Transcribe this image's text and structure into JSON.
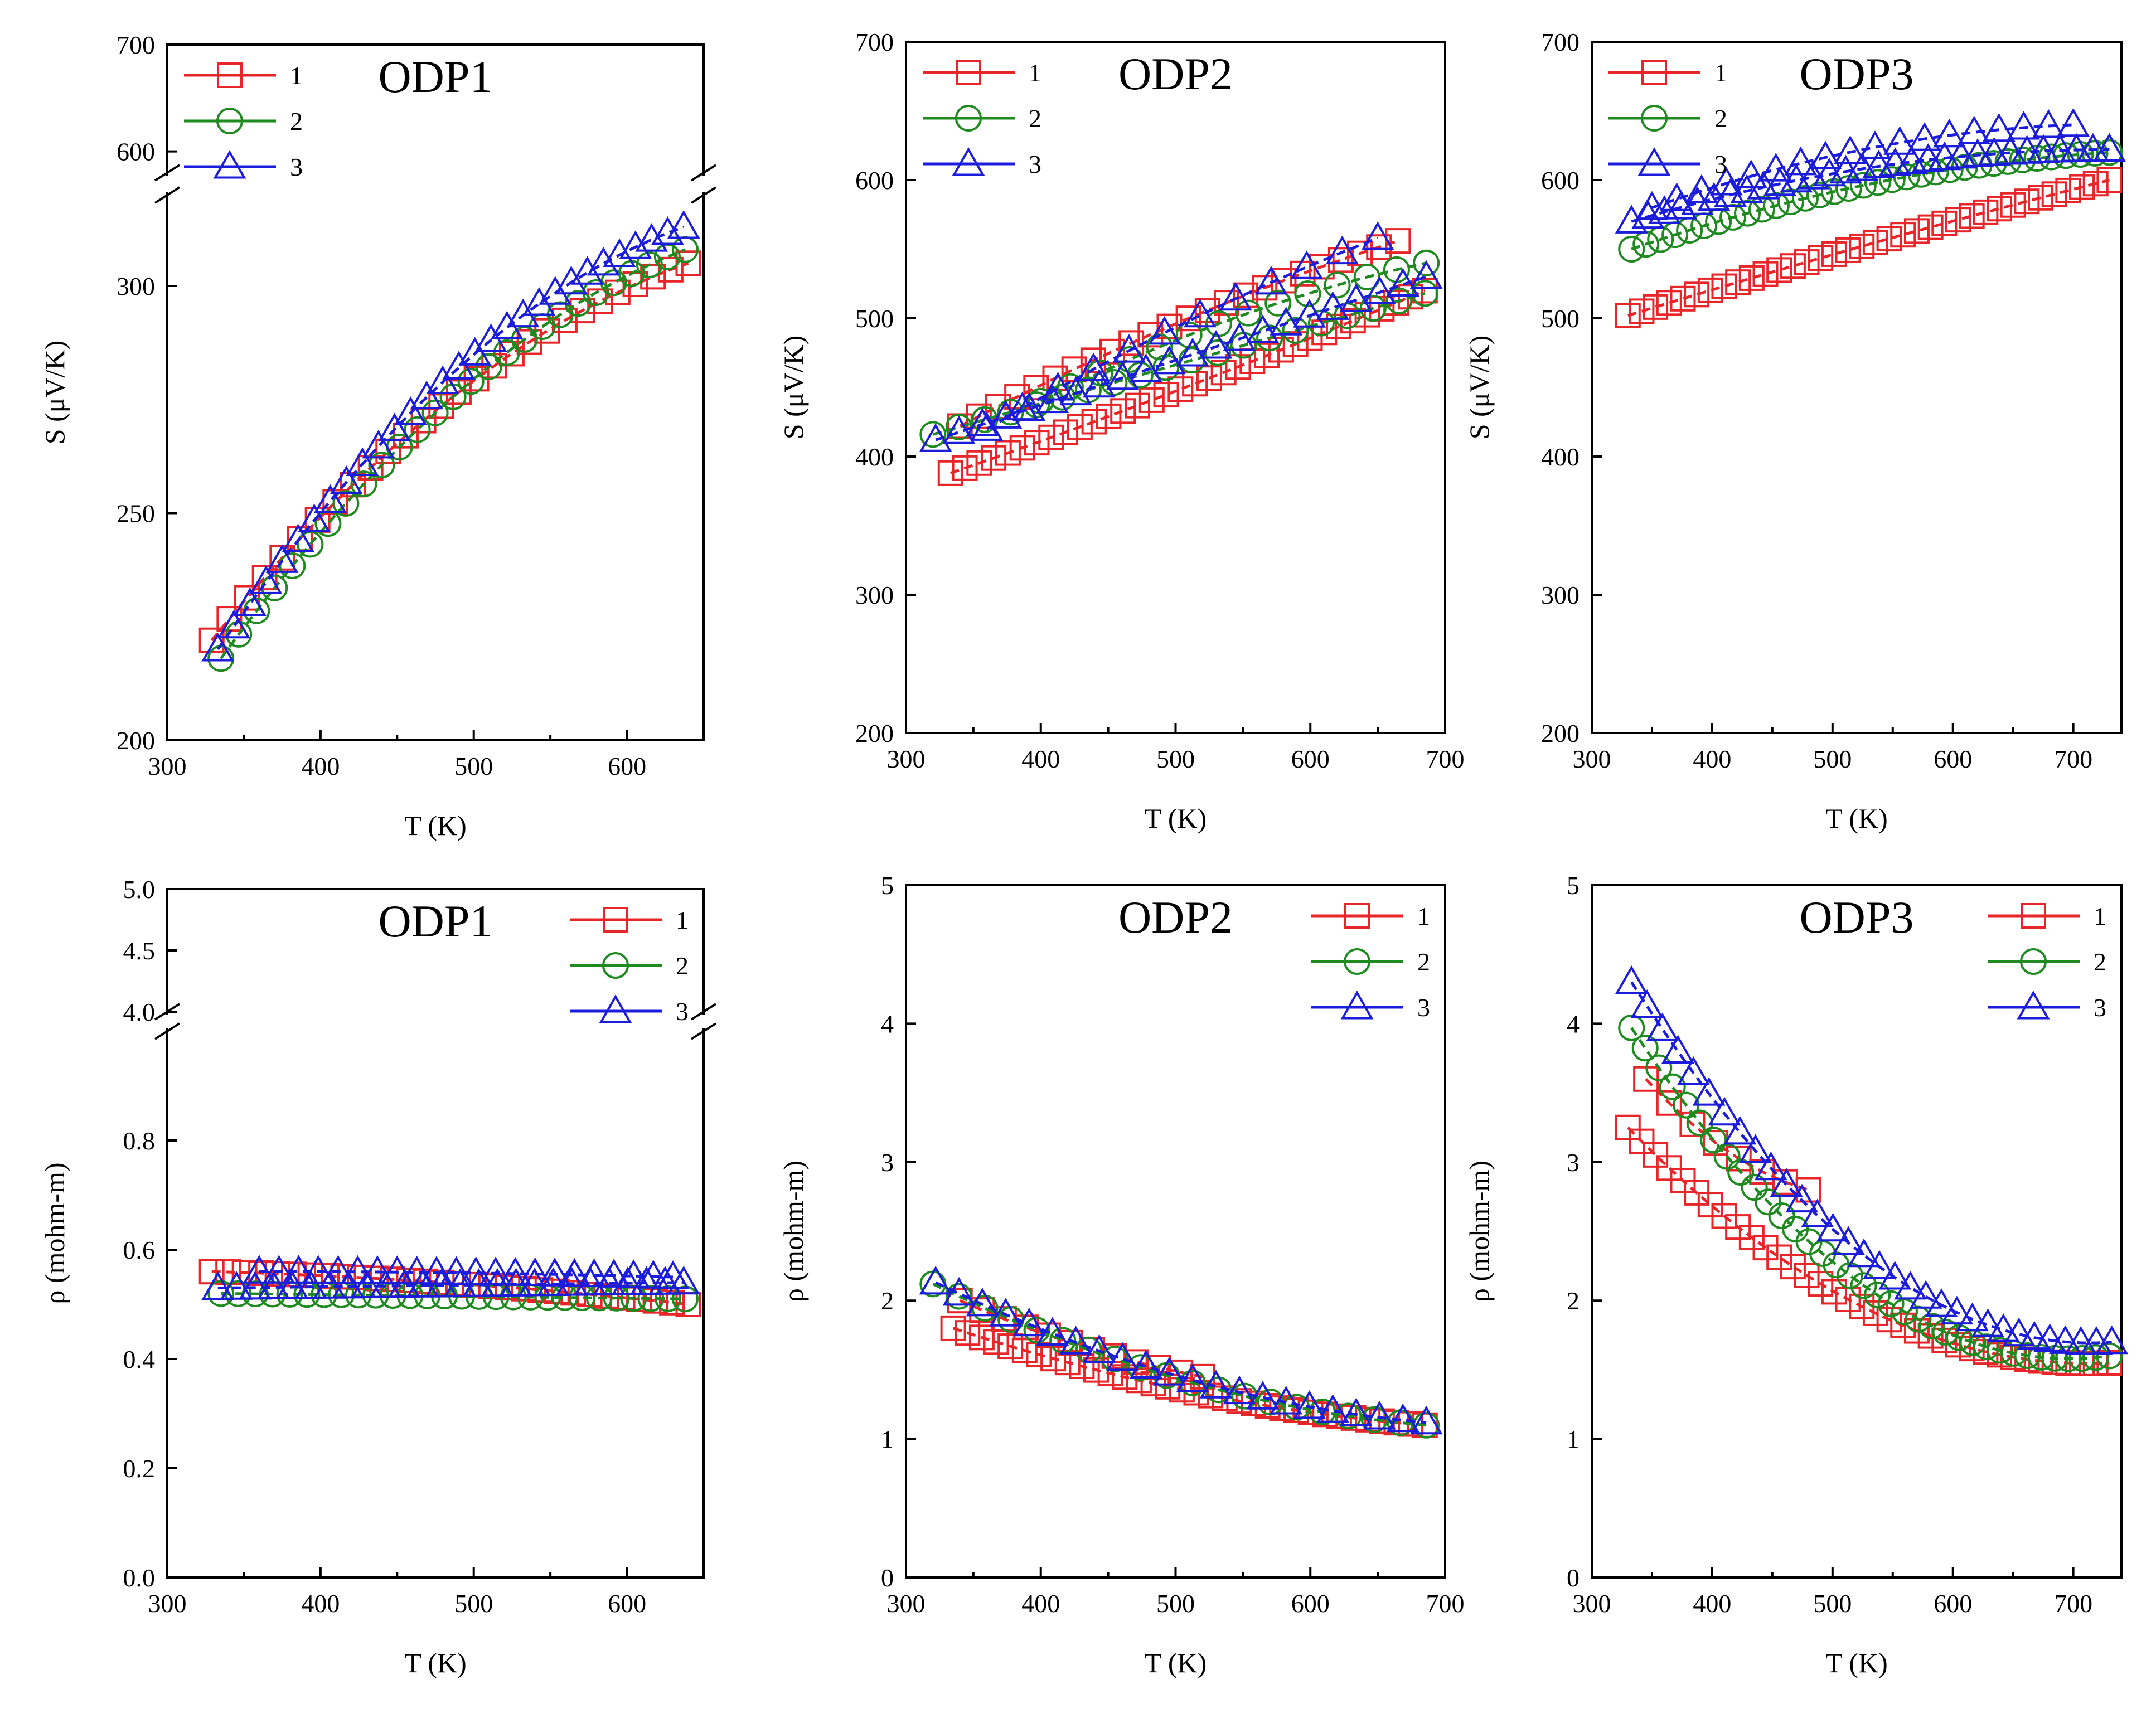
{
  "figure": {
    "description_free": true
  },
  "chart_data": [
    {
      "id": "odp1-s",
      "type": "scatter",
      "title": "ODP1",
      "xlabel": "T (K)",
      "ylabel": "S (μV/K)",
      "xlim": [
        300,
        650
      ],
      "xticks": [
        300,
        400,
        500,
        600
      ],
      "ylim": [
        200,
        700
      ],
      "yticks": [
        200,
        250,
        300,
        600,
        700
      ],
      "axis_break": {
        "lower": [
          200,
          320
        ],
        "upper": [
          580,
          700
        ]
      },
      "series": [
        {
          "name": "1",
          "color": "#e8262a",
          "marker": "square",
          "runs": [
            {
              "x": [
                329,
                640
              ],
              "y": [
                222,
                305
              ],
              "curve": 0.28,
              "n": 28
            }
          ]
        },
        {
          "name": "2",
          "color": "#1f8a1f",
          "marker": "circle",
          "runs": [
            {
              "x": [
                335,
                638
              ],
              "y": [
                218,
                308
              ],
              "curve": 0.28,
              "n": 27
            }
          ]
        },
        {
          "name": "3",
          "color": "#1c1cdd",
          "marker": "triangle",
          "runs": [
            {
              "x": [
                333,
                637
              ],
              "y": [
                220,
                313
              ],
              "curve": 0.3,
              "n": 30
            }
          ]
        }
      ],
      "legend": {
        "entries": [
          "1",
          "2",
          "3"
        ],
        "position": "top-left"
      }
    },
    {
      "id": "odp2-s",
      "type": "scatter",
      "title": "ODP2",
      "xlabel": "T (K)",
      "ylabel": "S (μV/K)",
      "xlim": [
        300,
        700
      ],
      "xticks": [
        300,
        400,
        500,
        600,
        700
      ],
      "ylim": [
        200,
        700
      ],
      "yticks": [
        200,
        300,
        400,
        500,
        600,
        700
      ],
      "series": [
        {
          "name": "1",
          "color": "#e8262a",
          "marker": "square",
          "runs": [
            {
              "x": [
                333,
                685
              ],
              "y": [
                388,
                520
              ],
              "curve": -0.05,
              "n": 34
            },
            {
              "x": [
                340,
                665
              ],
              "y": [
                422,
                556
              ],
              "curve": 0.12,
              "n": 24
            }
          ]
        },
        {
          "name": "2",
          "color": "#1f8a1f",
          "marker": "circle",
          "runs": [
            {
              "x": [
                320,
                685
              ],
              "y": [
                416,
                518
              ],
              "curve": 0.0,
              "n": 20
            },
            {
              "x": [
                400,
                686
              ],
              "y": [
                440,
                540
              ],
              "curve": 0.2,
              "n": 14
            }
          ]
        },
        {
          "name": "3",
          "color": "#1c1cdd",
          "marker": "triangle",
          "runs": [
            {
              "x": [
                322,
                686
              ],
              "y": [
                412,
                530
              ],
              "curve": 0.0,
              "n": 22
            },
            {
              "x": [
                360,
                650
              ],
              "y": [
                420,
                558
              ],
              "curve": 0.1,
              "n": 12
            }
          ]
        }
      ],
      "legend": {
        "entries": [
          "1",
          "2",
          "3"
        ],
        "position": "top-left"
      }
    },
    {
      "id": "odp3-s",
      "type": "scatter",
      "title": "ODP3",
      "xlabel": "T (K)",
      "ylabel": "S (μV/K)",
      "xlim": [
        300,
        740
      ],
      "xticks": [
        300,
        400,
        500,
        600,
        700
      ],
      "ylim": [
        200,
        700
      ],
      "yticks": [
        200,
        300,
        400,
        500,
        600,
        700
      ],
      "series": [
        {
          "name": "1",
          "color": "#e8262a",
          "marker": "square",
          "runs": [
            {
              "x": [
                330,
                730
              ],
              "y": [
                502,
                600
              ],
              "curve": 0.05,
              "n": 36
            }
          ]
        },
        {
          "name": "2",
          "color": "#1f8a1f",
          "marker": "circle",
          "runs": [
            {
              "x": [
                333,
                730
              ],
              "y": [
                550,
                620
              ],
              "curve": 0.35,
              "n": 34
            }
          ]
        },
        {
          "name": "3",
          "color": "#1c1cdd",
          "marker": "triangle",
          "runs": [
            {
              "x": [
                333,
                730
              ],
              "y": [
                570,
                622
              ],
              "curve": 0.5,
              "n": 30
            },
            {
              "x": [
                350,
                700
              ],
              "y": [
                580,
                640
              ],
              "curve": 0.4,
              "n": 18
            }
          ]
        }
      ],
      "legend": {
        "entries": [
          "1",
          "2",
          "3"
        ],
        "position": "top-left"
      }
    },
    {
      "id": "odp1-rho",
      "type": "scatter",
      "title": "ODP1",
      "xlabel": "T (K)",
      "ylabel": "ρ (mohm-m)",
      "xlim": [
        300,
        650
      ],
      "xticks": [
        300,
        400,
        500,
        600
      ],
      "ylim": [
        0,
        5
      ],
      "yticks": [
        0.0,
        0.2,
        0.4,
        0.6,
        0.8,
        4.0,
        4.5,
        5.0
      ],
      "ytick_labels": [
        "0.0",
        "0.2",
        "0.4",
        "0.6",
        "0.8",
        "4.0",
        "4.5",
        "5.0"
      ],
      "axis_break": {
        "lower": [
          0,
          1.0
        ],
        "upper": [
          4.0,
          5.0
        ]
      },
      "series": [
        {
          "name": "1",
          "color": "#e8262a",
          "marker": "square",
          "runs": [
            {
              "x": [
                329,
                640
              ],
              "y": [
                0.56,
                0.5
              ],
              "curve": -0.3,
              "n": 30
            }
          ]
        },
        {
          "name": "2",
          "color": "#1f8a1f",
          "marker": "circle",
          "runs": [
            {
              "x": [
                335,
                638
              ],
              "y": [
                0.52,
                0.51
              ],
              "curve": 0.0,
              "n": 28
            }
          ]
        },
        {
          "name": "3",
          "color": "#1c1cdd",
          "marker": "triangle",
          "runs": [
            {
              "x": [
                333,
                637
              ],
              "y": [
                0.53,
                0.54
              ],
              "curve": 0.0,
              "n": 26
            },
            {
              "x": [
                360,
                630
              ],
              "y": [
                0.56,
                0.55
              ],
              "curve": -0.5,
              "n": 22
            }
          ]
        }
      ],
      "legend": {
        "entries": [
          "1",
          "2",
          "3"
        ],
        "position": "top-right"
      }
    },
    {
      "id": "odp2-rho",
      "type": "scatter",
      "title": "ODP2",
      "xlabel": "T (K)",
      "ylabel": "ρ (mohm-m)",
      "xlim": [
        300,
        700
      ],
      "xticks": [
        300,
        400,
        500,
        600,
        700
      ],
      "ylim": [
        0,
        5
      ],
      "yticks": [
        0,
        1,
        2,
        3,
        4,
        5
      ],
      "series": [
        {
          "name": "1",
          "color": "#e8262a",
          "marker": "square",
          "runs": [
            {
              "x": [
                335,
                685
              ],
              "y": [
                1.8,
                1.1
              ],
              "curve": 0.3,
              "n": 34
            },
            {
              "x": [
                340,
                520
              ],
              "y": [
                2.0,
                1.45
              ],
              "curve": 0.2,
              "n": 12
            }
          ]
        },
        {
          "name": "2",
          "color": "#1f8a1f",
          "marker": "circle",
          "runs": [
            {
              "x": [
                320,
                686
              ],
              "y": [
                2.12,
                1.1
              ],
              "curve": 0.35,
              "n": 20
            }
          ]
        },
        {
          "name": "3",
          "color": "#1c1cdd",
          "marker": "triangle",
          "runs": [
            {
              "x": [
                322,
                686
              ],
              "y": [
                2.13,
                1.12
              ],
              "curve": 0.35,
              "n": 22
            }
          ]
        }
      ],
      "legend": {
        "entries": [
          "1",
          "2",
          "3"
        ],
        "position": "top-right"
      }
    },
    {
      "id": "odp3-rho",
      "type": "scatter",
      "title": "ODP3",
      "xlabel": "T (K)",
      "ylabel": "ρ (mohm-m)",
      "xlim": [
        300,
        740
      ],
      "xticks": [
        300,
        400,
        500,
        600,
        700
      ],
      "ylim": [
        0,
        5
      ],
      "yticks": [
        0,
        1,
        2,
        3,
        4,
        5
      ],
      "series": [
        {
          "name": "1",
          "color": "#e8262a",
          "marker": "square",
          "runs": [
            {
              "x": [
                330,
                730
              ],
              "y": [
                3.25,
                1.55
              ],
              "curve": 0.55,
              "n": 36
            },
            {
              "x": [
                345,
                480
              ],
              "y": [
                3.6,
                2.8
              ],
              "curve": 0.3,
              "n": 8
            }
          ]
        },
        {
          "name": "2",
          "color": "#1f8a1f",
          "marker": "circle",
          "runs": [
            {
              "x": [
                333,
                730
              ],
              "y": [
                3.97,
                1.6
              ],
              "curve": 0.6,
              "n": 36
            }
          ]
        },
        {
          "name": "3",
          "color": "#1c1cdd",
          "marker": "triangle",
          "runs": [
            {
              "x": [
                333,
                732
              ],
              "y": [
                4.3,
                1.7
              ],
              "curve": 0.55,
              "n": 32
            }
          ]
        }
      ],
      "legend": {
        "entries": [
          "1",
          "2",
          "3"
        ],
        "position": "top-right"
      }
    }
  ]
}
